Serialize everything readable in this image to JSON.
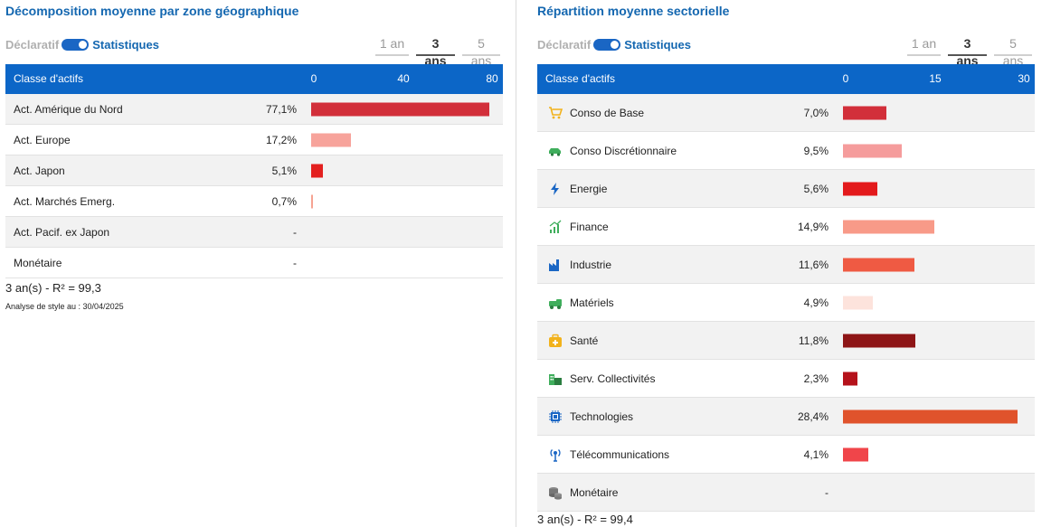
{
  "geo": {
    "title": "Décomposition moyenne par zone géographique",
    "toggle": {
      "off_label": "Déclaratif",
      "on_label": "Statistiques"
    },
    "periods": [
      {
        "label": "1 an",
        "active": false
      },
      {
        "label": "3 ans",
        "active": true
      },
      {
        "label": "5 ans",
        "active": false
      }
    ],
    "header": {
      "label": "Classe d'actifs"
    },
    "r2_text": "3 an(s) - R² = 99,3",
    "as_of_text": "Analyse de style au : 30/04/2025"
  },
  "sector": {
    "title": "Répartition moyenne sectorielle",
    "toggle": {
      "off_label": "Déclaratif",
      "on_label": "Statistiques"
    },
    "periods": [
      {
        "label": "1 an",
        "active": false
      },
      {
        "label": "3 ans",
        "active": true
      },
      {
        "label": "5 ans",
        "active": false
      }
    ],
    "header": {
      "label": "Classe d'actifs"
    },
    "r2_text": "3 an(s) - R² = 99,4"
  },
  "chart_data": [
    {
      "type": "bar",
      "orientation": "horizontal",
      "title": "Décomposition moyenne par zone géographique",
      "xlim": [
        0,
        80
      ],
      "ticks": [
        "0",
        "40",
        "80"
      ],
      "categories": [
        "Act. Amérique du Nord",
        "Act. Europe",
        "Act. Japon",
        "Act. Marchés Emerg.",
        "Act. Pacif. ex Japon",
        "Monétaire"
      ],
      "values": [
        77.1,
        17.2,
        5.1,
        0.7,
        null,
        null
      ],
      "value_labels": [
        "77,1%",
        "17,2%",
        "5,1%",
        "0,7%",
        "-",
        "-"
      ],
      "colors": [
        "#d22f3a",
        "#f7a39b",
        "#e3201f",
        "#f6a392",
        null,
        null
      ]
    },
    {
      "type": "bar",
      "orientation": "horizontal",
      "title": "Répartition moyenne sectorielle",
      "xlim": [
        0,
        30
      ],
      "ticks": [
        "0",
        "15",
        "30"
      ],
      "categories": [
        "Conso de Base",
        "Conso Discrétionnaire",
        "Energie",
        "Finance",
        "Industrie",
        "Matériels",
        "Santé",
        "Serv. Collectivités",
        "Technologies",
        "Télécommunications",
        "Monétaire"
      ],
      "values": [
        7.0,
        9.5,
        5.6,
        14.9,
        11.6,
        4.9,
        11.8,
        2.3,
        28.4,
        4.1,
        null
      ],
      "value_labels": [
        "7,0%",
        "9,5%",
        "5,6%",
        "14,9%",
        "11,6%",
        "4,9%",
        "11,8%",
        "2,3%",
        "28,4%",
        "4,1%",
        "-"
      ],
      "colors": [
        "#d22f3a",
        "#f59c9c",
        "#e31a1c",
        "#f89a88",
        "#ef5a43",
        "#fde3dc",
        "#8e1516",
        "#b5121b",
        "#e0532c",
        "#f0454a",
        null
      ],
      "icons": [
        "cart-icon",
        "car-icon",
        "lightning-icon",
        "finance-chart-icon",
        "factory-icon",
        "materials-icon",
        "medical-kit-icon",
        "utilities-icon",
        "chip-icon",
        "antenna-icon",
        "coins-icon"
      ]
    }
  ]
}
